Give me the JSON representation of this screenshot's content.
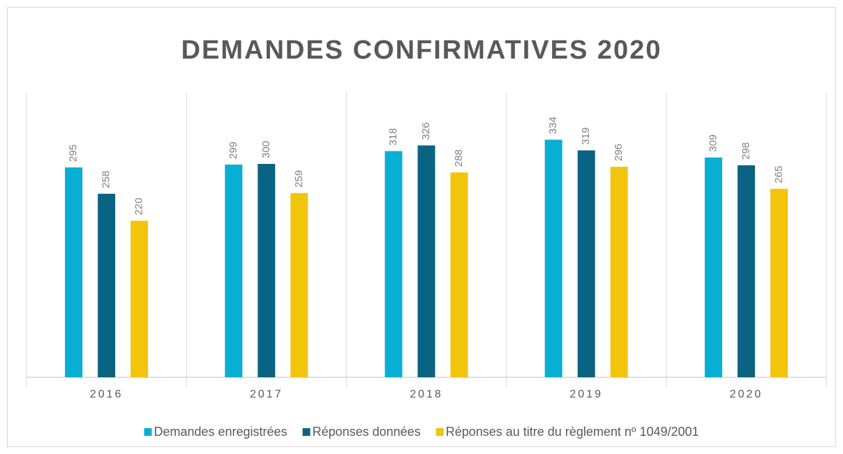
{
  "chart_data": {
    "type": "bar",
    "title": "DEMANDES CONFIRMATIVES 2020",
    "categories": [
      "2016",
      "2017",
      "2018",
      "2019",
      "2020"
    ],
    "series": [
      {
        "name": "Demandes enregistrées",
        "color": "#08afd5",
        "values": [
          295,
          299,
          318,
          334,
          309
        ]
      },
      {
        "name": "Réponses données",
        "color": "#0a6383",
        "values": [
          258,
          300,
          326,
          319,
          298
        ]
      },
      {
        "name": "Réponses au titre du règlement nº 1049/2001",
        "color": "#f2c40c",
        "values": [
          220,
          259,
          288,
          296,
          265
        ]
      }
    ],
    "ylim": [
      0,
      400
    ],
    "legend": "bottom"
  }
}
